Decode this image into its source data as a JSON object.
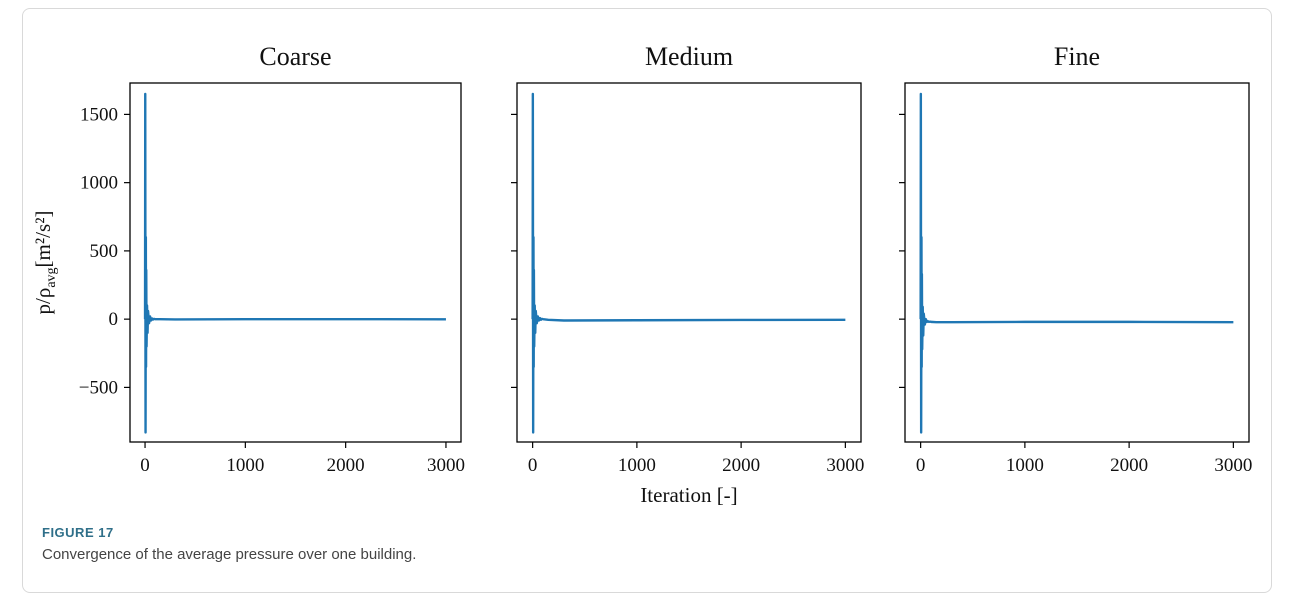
{
  "figure": {
    "label": "FIGURE 17",
    "caption": "Convergence of the average pressure over one building."
  },
  "chart_data": [
    {
      "type": "line",
      "title": "Coarse",
      "xlabel": "",
      "ylabel_main": "p/ρ",
      "ylabel_sub": "avg",
      "ylabel_tail": "[m²/s²]",
      "xticks": [
        0,
        1000,
        2000,
        3000
      ],
      "yticks": [
        -500,
        0,
        500,
        1000,
        1500
      ],
      "show_ytick_labels": true,
      "xlim": [
        -150,
        3150
      ],
      "ylim": [
        -900,
        1730
      ],
      "color": "#1f77b4",
      "x": [
        0,
        2,
        5,
        8,
        10,
        12,
        15,
        20,
        25,
        30,
        40,
        50,
        60,
        70,
        80,
        90,
        100,
        150,
        300,
        1000,
        2000,
        3000
      ],
      "y": [
        0,
        1650,
        -830,
        600,
        -350,
        360,
        -200,
        100,
        -100,
        60,
        -30,
        20,
        -10,
        5,
        -3,
        2,
        0,
        0,
        -2,
        0,
        0,
        -1
      ]
    },
    {
      "type": "line",
      "title": "Medium",
      "xlabel": "Iteration [-]",
      "xticks": [
        0,
        1000,
        2000,
        3000
      ],
      "yticks": [
        -500,
        0,
        500,
        1000,
        1500
      ],
      "show_ytick_labels": false,
      "xlim": [
        -150,
        3150
      ],
      "ylim": [
        -900,
        1730
      ],
      "color": "#1f77b4",
      "x": [
        0,
        2,
        5,
        8,
        10,
        12,
        15,
        20,
        25,
        30,
        40,
        50,
        60,
        70,
        80,
        90,
        100,
        150,
        300,
        1000,
        2000,
        3000
      ],
      "y": [
        0,
        1650,
        -830,
        600,
        -350,
        360,
        -200,
        100,
        -100,
        60,
        -30,
        20,
        -10,
        8,
        -4,
        2,
        0,
        -5,
        -10,
        -8,
        -6,
        -5
      ]
    },
    {
      "type": "line",
      "title": "Fine",
      "xlabel": "",
      "xticks": [
        0,
        1000,
        2000,
        3000
      ],
      "yticks": [
        -500,
        0,
        500,
        1000,
        1500
      ],
      "show_ytick_labels": false,
      "xlim": [
        -150,
        3150
      ],
      "ylim": [
        -900,
        1730
      ],
      "color": "#1f77b4",
      "x": [
        0,
        2,
        5,
        8,
        10,
        12,
        15,
        20,
        25,
        30,
        40,
        50,
        60,
        70,
        80,
        90,
        100,
        150,
        300,
        1000,
        2000,
        3000
      ],
      "y": [
        0,
        1650,
        -830,
        600,
        -350,
        330,
        -220,
        90,
        -120,
        40,
        -40,
        0,
        -20,
        -15,
        -20,
        -18,
        -20,
        -22,
        -22,
        -20,
        -20,
        -22
      ]
    }
  ]
}
